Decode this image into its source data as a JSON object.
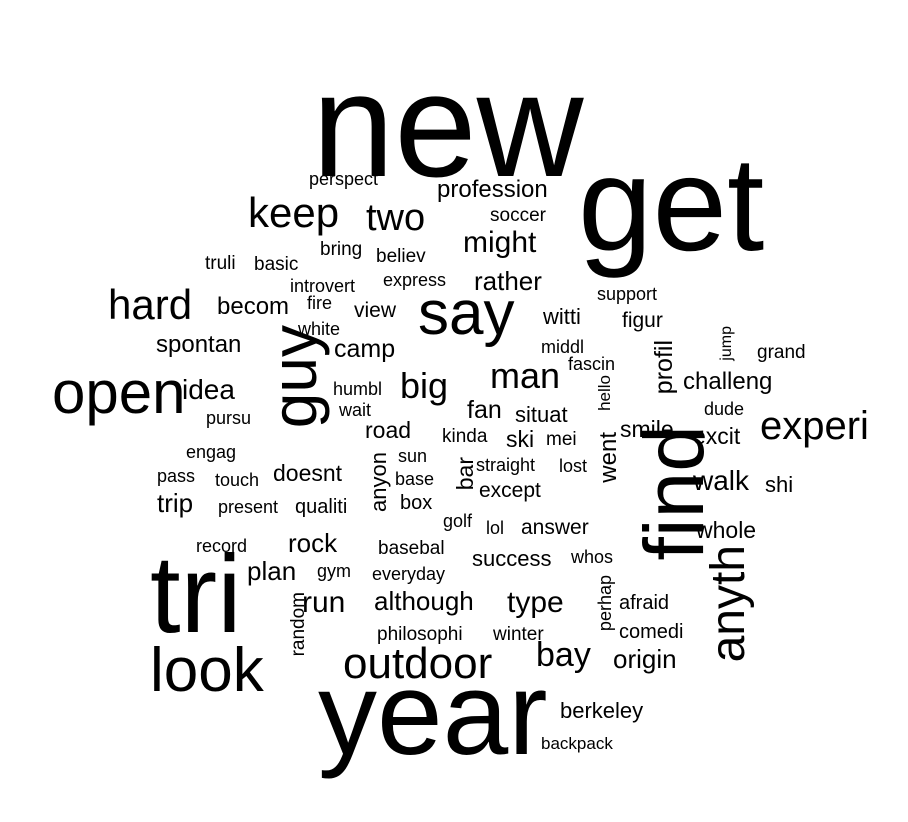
{
  "words": [
    {
      "text": "new",
      "weight": 10
    },
    {
      "text": "get",
      "weight": 9.5
    },
    {
      "text": "year",
      "weight": 8.5
    },
    {
      "text": "tri",
      "weight": 8
    },
    {
      "text": "find",
      "weight": 7
    },
    {
      "text": "guy",
      "weight": 6
    },
    {
      "text": "say",
      "weight": 5.5
    },
    {
      "text": "look",
      "weight": 5.5
    },
    {
      "text": "open",
      "weight": 5.3
    },
    {
      "text": "anyth",
      "weight": 4.8
    },
    {
      "text": "outdoor",
      "weight": 4.2
    },
    {
      "text": "keep",
      "weight": 4
    },
    {
      "text": "hard",
      "weight": 4
    },
    {
      "text": "experi",
      "weight": 3.8
    },
    {
      "text": "two",
      "weight": 3.6
    },
    {
      "text": "man",
      "weight": 3.5
    },
    {
      "text": "big",
      "weight": 3.5
    },
    {
      "text": "bay",
      "weight": 3.2
    },
    {
      "text": "might",
      "weight": 3
    },
    {
      "text": "run",
      "weight": 3
    },
    {
      "text": "type",
      "weight": 3
    },
    {
      "text": "walk",
      "weight": 2.8
    },
    {
      "text": "idea",
      "weight": 2.8
    },
    {
      "text": "rather",
      "weight": 2.6
    },
    {
      "text": "trip",
      "weight": 2.6
    },
    {
      "text": "plan",
      "weight": 2.6
    },
    {
      "text": "although",
      "weight": 2.6
    },
    {
      "text": "origin",
      "weight": 2.6
    },
    {
      "text": "rock",
      "weight": 2.6
    },
    {
      "text": "camp",
      "weight": 2.5
    },
    {
      "text": "fan",
      "weight": 2.5
    },
    {
      "text": "profil",
      "weight": 2.5
    },
    {
      "text": "profession",
      "weight": 2.4
    },
    {
      "text": "becom",
      "weight": 2.4
    },
    {
      "text": "spontan",
      "weight": 2.4
    },
    {
      "text": "challeng",
      "weight": 2.4
    },
    {
      "text": "went",
      "weight": 2.4
    },
    {
      "text": "smile",
      "weight": 2.3
    },
    {
      "text": "excit",
      "weight": 2.3
    },
    {
      "text": "road",
      "weight": 2.3
    },
    {
      "text": "ski",
      "weight": 2.3
    },
    {
      "text": "doesnt",
      "weight": 2.3
    },
    {
      "text": "whole",
      "weight": 2.3
    },
    {
      "text": "bar",
      "weight": 2.3
    },
    {
      "text": "witti",
      "weight": 2.2
    },
    {
      "text": "situat",
      "weight": 2.2
    },
    {
      "text": "anyon",
      "weight": 2.2
    },
    {
      "text": "success",
      "weight": 2.2
    },
    {
      "text": "berkeley",
      "weight": 2.2
    },
    {
      "text": "shi",
      "weight": 2.2
    },
    {
      "text": "view",
      "weight": 2.1
    },
    {
      "text": "figur",
      "weight": 2.1
    },
    {
      "text": "except",
      "weight": 2.1
    },
    {
      "text": "answer",
      "weight": 2.1
    },
    {
      "text": "comedi",
      "weight": 2
    },
    {
      "text": "afraid",
      "weight": 2
    },
    {
      "text": "qualiti",
      "weight": 2
    },
    {
      "text": "box",
      "weight": 2
    },
    {
      "text": "soccer",
      "weight": 1.9
    },
    {
      "text": "basic",
      "weight": 1.9
    },
    {
      "text": "bring",
      "weight": 1.9
    },
    {
      "text": "truli",
      "weight": 1.9
    },
    {
      "text": "believ",
      "weight": 1.9
    },
    {
      "text": "random",
      "weight": 1.9
    },
    {
      "text": "philosophi",
      "weight": 1.9
    },
    {
      "text": "winter",
      "weight": 1.9
    },
    {
      "text": "basebal",
      "weight": 1.9
    },
    {
      "text": "kinda",
      "weight": 1.9
    },
    {
      "text": "mei",
      "weight": 1.9
    },
    {
      "text": "grand",
      "weight": 1.9
    },
    {
      "text": "perspect",
      "weight": 1.8
    },
    {
      "text": "express",
      "weight": 1.8
    },
    {
      "text": "introvert",
      "weight": 1.8
    },
    {
      "text": "support",
      "weight": 1.8
    },
    {
      "text": "fire",
      "weight": 1.8
    },
    {
      "text": "white",
      "weight": 1.8
    },
    {
      "text": "middl",
      "weight": 1.8
    },
    {
      "text": "fascin",
      "weight": 1.8
    },
    {
      "text": "humbl",
      "weight": 1.8
    },
    {
      "text": "wait",
      "weight": 1.8
    },
    {
      "text": "pursu",
      "weight": 1.8
    },
    {
      "text": "engag",
      "weight": 1.8
    },
    {
      "text": "pass",
      "weight": 1.8
    },
    {
      "text": "touch",
      "weight": 1.8
    },
    {
      "text": "sun",
      "weight": 1.8
    },
    {
      "text": "base",
      "weight": 1.8
    },
    {
      "text": "straight",
      "weight": 1.8
    },
    {
      "text": "lost",
      "weight": 1.8
    },
    {
      "text": "present",
      "weight": 1.8
    },
    {
      "text": "golf",
      "weight": 1.8
    },
    {
      "text": "lol",
      "weight": 1.8
    },
    {
      "text": "record",
      "weight": 1.8
    },
    {
      "text": "gym",
      "weight": 1.8
    },
    {
      "text": "everyday",
      "weight": 1.8
    },
    {
      "text": "whos",
      "weight": 1.8
    },
    {
      "text": "perhap",
      "weight": 1.8
    },
    {
      "text": "dude",
      "weight": 1.8
    },
    {
      "text": "hello",
      "weight": 1.7
    },
    {
      "text": "jump",
      "weight": 1.7
    },
    {
      "text": "backpack",
      "weight": 1.7
    }
  ]
}
